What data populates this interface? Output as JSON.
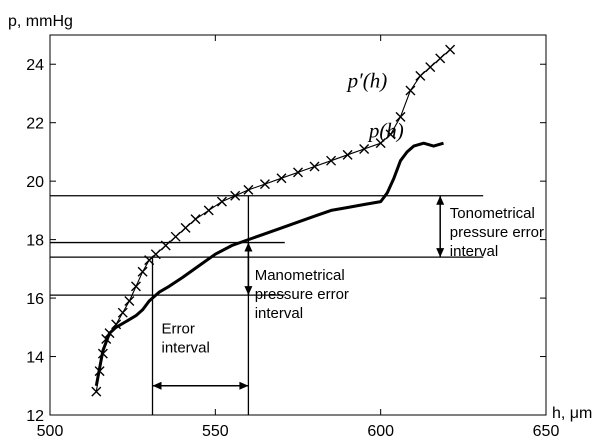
{
  "chart_data": {
    "type": "line",
    "title": "",
    "xlabel": "h, μm",
    "ylabel": "p, mmHg",
    "xlim": [
      500,
      650
    ],
    "ylim": [
      12,
      25
    ],
    "xticks": [
      500,
      550,
      600,
      650
    ],
    "yticks": [
      12,
      14,
      16,
      18,
      20,
      22,
      24
    ],
    "grid": false,
    "series": [
      {
        "name": "p′(h)",
        "marker": "x",
        "x": [
          514,
          515,
          516,
          517,
          518,
          520,
          522,
          524,
          526,
          528,
          530,
          532,
          535,
          538,
          541,
          544,
          548,
          552,
          556,
          560,
          565,
          570,
          575,
          580,
          585,
          590,
          595,
          600,
          603,
          606,
          609,
          612,
          615,
          618,
          621
        ],
        "y": [
          12.8,
          13.5,
          14.1,
          14.6,
          14.8,
          15.1,
          15.5,
          15.9,
          16.4,
          16.9,
          17.3,
          17.5,
          17.8,
          18.1,
          18.4,
          18.7,
          19.0,
          19.3,
          19.5,
          19.7,
          19.9,
          20.1,
          20.3,
          20.5,
          20.7,
          20.9,
          21.1,
          21.3,
          21.6,
          22.2,
          23.1,
          23.6,
          23.9,
          24.2,
          24.5
        ]
      },
      {
        "name": "p(h)",
        "marker": "none",
        "x": [
          514,
          516,
          518,
          520,
          523,
          526,
          528,
          530,
          533,
          536,
          540,
          545,
          550,
          555,
          560,
          565,
          570,
          575,
          580,
          585,
          590,
          595,
          600,
          602,
          604,
          606,
          608,
          610,
          613,
          616,
          619
        ],
        "y": [
          13.0,
          14.2,
          14.8,
          15.0,
          15.2,
          15.4,
          15.6,
          15.9,
          16.2,
          16.4,
          16.7,
          17.1,
          17.5,
          17.8,
          18.0,
          18.2,
          18.4,
          18.6,
          18.8,
          19.0,
          19.1,
          19.2,
          19.3,
          19.6,
          20.1,
          20.7,
          21.0,
          21.2,
          21.3,
          21.2,
          21.3
        ]
      }
    ],
    "curve_labels": [
      {
        "text": "p′(h)",
        "x": 602,
        "y": 23.2
      },
      {
        "text": "p(h)",
        "x": 607,
        "y": 21.5
      }
    ],
    "reference_lines": [
      {
        "y": 19.5,
        "x_from": 500,
        "x_to": 631
      },
      {
        "y": 17.9,
        "x_from": 500,
        "x_to": 571
      },
      {
        "y": 17.4,
        "x_from": 500,
        "x_to": 631
      },
      {
        "y": 16.1,
        "x_from": 500,
        "x_to": 571
      }
    ],
    "vertical_lines": [
      {
        "x": 531,
        "y_from": 12,
        "y_to": 17.4
      },
      {
        "x": 560,
        "y_from": 12,
        "y_to": 19.5
      }
    ],
    "intervals": [
      {
        "id": "tonometrical",
        "axis": "y",
        "at": 618,
        "from": 17.4,
        "to": 19.5
      },
      {
        "id": "manometrical",
        "axis": "y",
        "at": 560,
        "from": 16.1,
        "to": 17.9
      },
      {
        "id": "error",
        "axis": "x",
        "at": 13.0,
        "from": 531,
        "to": 560
      }
    ],
    "annotations": {
      "tonometrical": [
        "Tonometrical",
        "pressure error",
        "interval"
      ],
      "manometrical": [
        "Manometrical",
        "pressure error",
        "interval"
      ],
      "error": [
        "Error",
        "interval"
      ]
    }
  }
}
